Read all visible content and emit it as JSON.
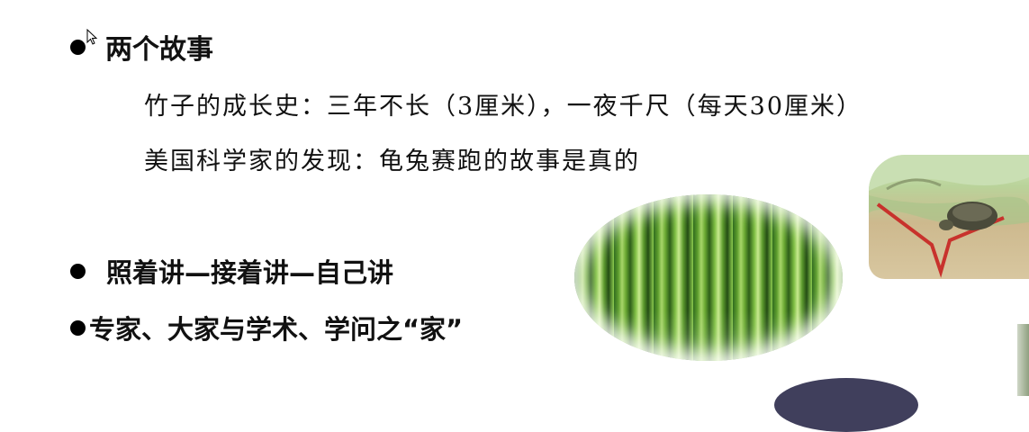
{
  "bullets": [
    {
      "text": "两个故事"
    },
    {
      "text": "照着讲—接着讲—自己讲"
    },
    {
      "text": "专家、大家与学术、学问之“家”"
    }
  ],
  "subitems": [
    {
      "text": "竹子的成长史：三年不长（3厘米），一夜千尺（每天30厘米）"
    },
    {
      "text": "美国科学家的发现：龟兔赛跑的故事是真的"
    }
  ]
}
